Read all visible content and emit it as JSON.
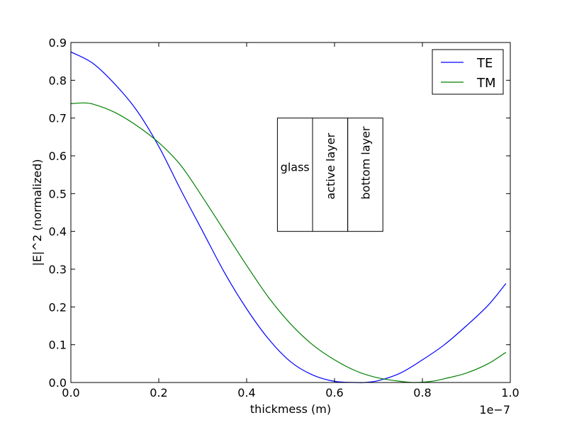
{
  "chart_data": {
    "type": "line",
    "title": "",
    "xlabel": "thickmess (m)",
    "ylabel": "|E|^2 (normalized)",
    "x_offset_label": "1e−7",
    "xlim": [
      0.0,
      1.0
    ],
    "ylim": [
      0.0,
      0.9
    ],
    "x_ticks": [
      "0.0",
      "0.2",
      "0.4",
      "0.6",
      "0.8",
      "1.0"
    ],
    "y_ticks": [
      "0.0",
      "0.1",
      "0.2",
      "0.3",
      "0.4",
      "0.5",
      "0.6",
      "0.7",
      "0.8",
      "0.9"
    ],
    "grid": false,
    "legend_position": "upper right",
    "series": [
      {
        "name": "TE",
        "color": "#0000ff",
        "x": [
          0.0,
          0.05,
          0.1,
          0.15,
          0.2,
          0.25,
          0.3,
          0.35,
          0.4,
          0.45,
          0.5,
          0.55,
          0.6,
          0.65,
          0.668,
          0.7,
          0.75,
          0.8,
          0.85,
          0.9,
          0.95,
          0.99
        ],
        "y": [
          0.875,
          0.845,
          0.79,
          0.72,
          0.625,
          0.51,
          0.4,
          0.29,
          0.195,
          0.115,
          0.055,
          0.02,
          0.003,
          0.0,
          0.0,
          0.005,
          0.025,
          0.06,
          0.1,
          0.15,
          0.205,
          0.262
        ]
      },
      {
        "name": "TM",
        "color": "#008000",
        "x": [
          0.0,
          0.025,
          0.05,
          0.1,
          0.15,
          0.2,
          0.25,
          0.3,
          0.35,
          0.4,
          0.45,
          0.5,
          0.55,
          0.6,
          0.65,
          0.7,
          0.75,
          0.78,
          0.82,
          0.85,
          0.9,
          0.95,
          0.99
        ],
        "y": [
          0.738,
          0.74,
          0.737,
          0.715,
          0.68,
          0.635,
          0.575,
          0.49,
          0.4,
          0.31,
          0.225,
          0.155,
          0.1,
          0.06,
          0.03,
          0.012,
          0.003,
          0.0,
          0.003,
          0.01,
          0.025,
          0.05,
          0.08
        ]
      }
    ],
    "annotation_boxes": [
      {
        "text": "glass",
        "rotation": 0,
        "x0": 0.47,
        "x1": 0.55,
        "y0": 0.4,
        "y1": 0.7
      },
      {
        "text": "active layer",
        "rotation": -90,
        "x0": 0.55,
        "x1": 0.63,
        "y0": 0.4,
        "y1": 0.7
      },
      {
        "text": "bottom layer",
        "rotation": -90,
        "x0": 0.63,
        "x1": 0.71,
        "y0": 0.4,
        "y1": 0.7
      }
    ]
  }
}
